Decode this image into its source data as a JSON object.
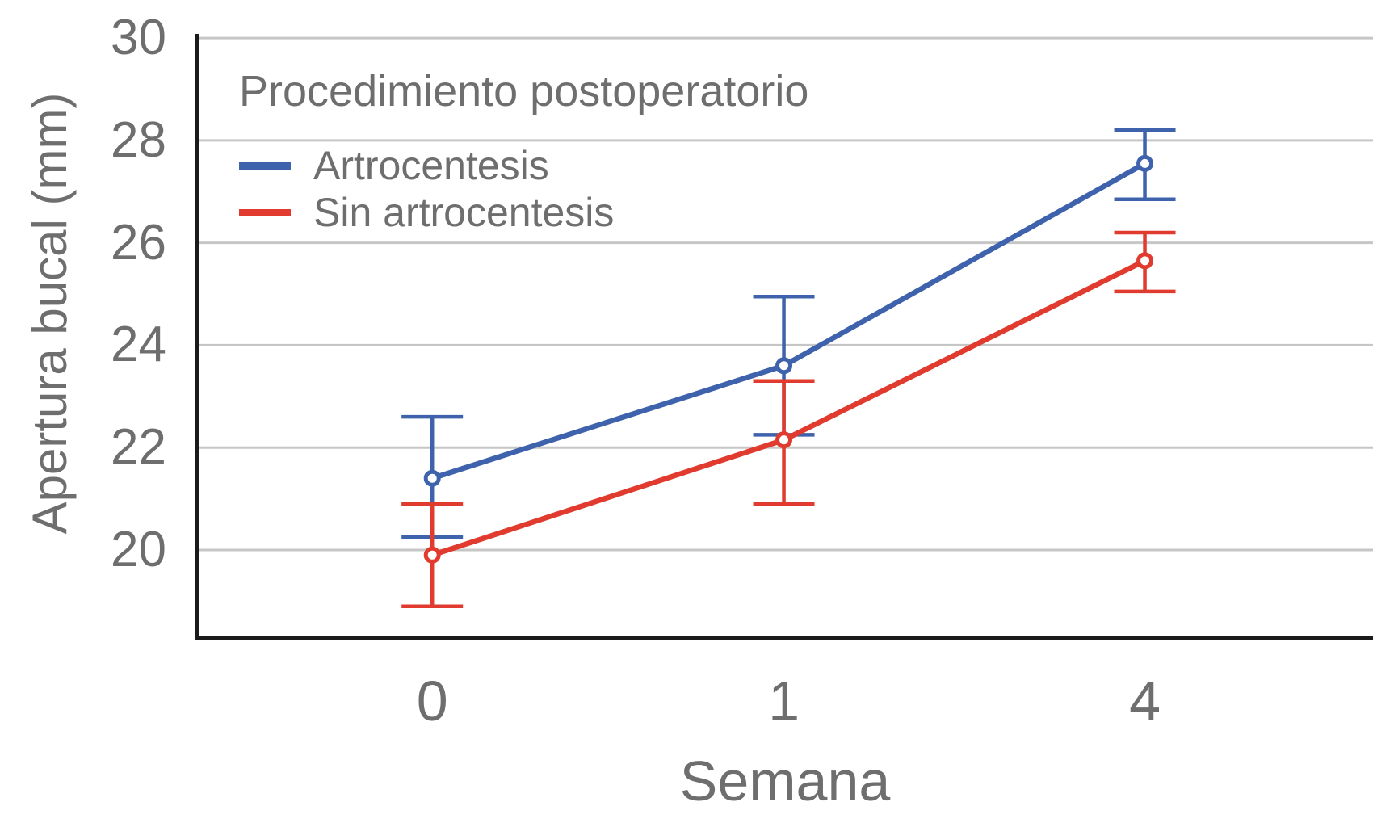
{
  "colors": {
    "text": "#6E6E6E",
    "grid": "#C6C6C6",
    "axis": "#1A1A1A",
    "background": "#FFFFFF",
    "series_blue": "#3E62AC",
    "series_red": "#E03B2E"
  },
  "chart_data": {
    "type": "line",
    "title": "",
    "legend_title": "Procedimiento postoperatorio",
    "xlabel": "Semana",
    "ylabel": "Apertura bucal (mm)",
    "categories": [
      "0",
      "1",
      "4"
    ],
    "y_ticks": [
      30,
      28,
      26,
      24,
      22,
      20
    ],
    "ylim": [
      18.28,
      30.08
    ],
    "grid": "horizontal-only",
    "legend_position": "inside-top-left",
    "marker": "open-circle",
    "error_bars": true,
    "series": [
      {
        "name": "Artrocentesis",
        "color": "#3E62AC",
        "means": [
          21.4,
          23.6,
          27.55
        ],
        "ci_low": [
          20.25,
          22.25,
          26.85
        ],
        "ci_high": [
          22.6,
          24.95,
          28.2
        ]
      },
      {
        "name": "Sin artrocentesis",
        "color": "#E03B2E",
        "means": [
          19.9,
          22.15,
          25.65
        ],
        "ci_low": [
          18.9,
          20.9,
          25.05
        ],
        "ci_high": [
          20.9,
          23.3,
          26.2
        ]
      }
    ]
  }
}
